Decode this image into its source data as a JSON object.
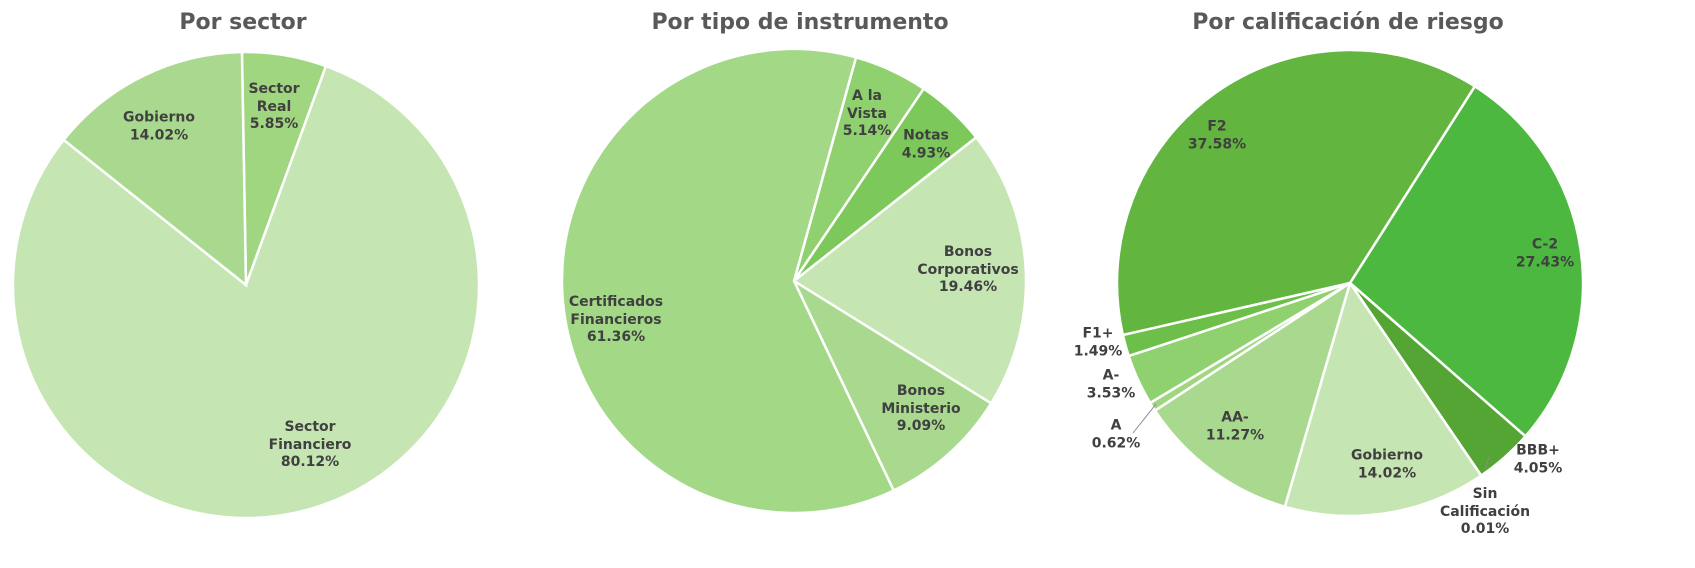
{
  "chart_data": [
    {
      "type": "pie",
      "title": "Por sector",
      "categories": [
        "Sector\nReal",
        "Sector\nFinanciero",
        "Gobierno"
      ],
      "values": [
        5.85,
        80.12,
        14.02
      ],
      "value_labels": [
        "5.85%",
        "80.12%",
        "14.02%"
      ],
      "colors": [
        "#9fd67f",
        "#c5e5b3",
        "#a9d98e"
      ]
    },
    {
      "type": "pie",
      "title": "Por tipo de instrumento",
      "categories": [
        "A la\nVista",
        "Notas",
        "Bonos\nCorporativos",
        "Bonos\nMinisterio",
        "Certificados\nFinancieros"
      ],
      "values": [
        5.14,
        4.93,
        19.46,
        9.09,
        61.36
      ],
      "value_labels": [
        "5.14%",
        "4.93%",
        "19.46%",
        "9.09%",
        "61.36%"
      ],
      "colors": [
        "#8fd06f",
        "#7dc85a",
        "#c5e5b3",
        "#a9d98e",
        "#a2d886"
      ]
    },
    {
      "type": "pie",
      "title": "Por calificación de riesgo",
      "categories": [
        "C-2",
        "BBB+",
        "Sin\nCalificación",
        "Gobierno",
        "AA-",
        "A",
        "A-",
        "F1+",
        "F2"
      ],
      "values": [
        27.43,
        4.05,
        0.01,
        14.02,
        11.27,
        0.62,
        3.53,
        1.49,
        37.58
      ],
      "value_labels": [
        "27.43%",
        "4.05%",
        "0.01%",
        "14.02%",
        "11.27%",
        "0.62%",
        "3.53%",
        "1.49%",
        "37.58%"
      ],
      "colors": [
        "#4db83f",
        "#55a534",
        "#62b53f",
        "#c5e5b3",
        "#a9d98e",
        "#9fd67f",
        "#8fd06f",
        "#6cc04a",
        "#62b53f"
      ]
    }
  ]
}
